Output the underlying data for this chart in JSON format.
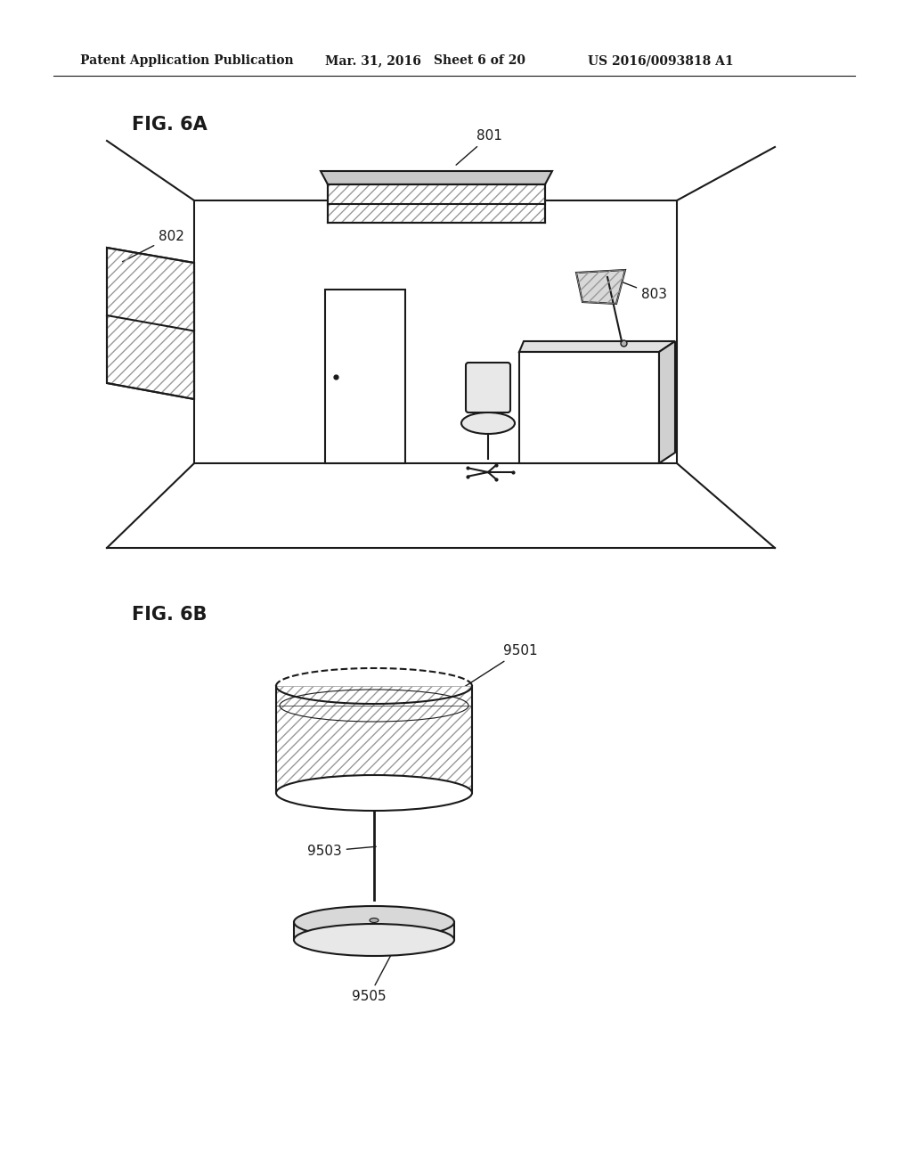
{
  "bg_color": "#ffffff",
  "header_text": "Patent Application Publication",
  "header_date": "Mar. 31, 2016",
  "header_sheet": "Sheet 6 of 20",
  "header_patent": "US 2016/0093818 A1",
  "fig6a_label": "FIG. 6A",
  "fig6b_label": "FIG. 6B",
  "label_801": "801",
  "label_802": "802",
  "label_803": "803",
  "label_9501": "9501",
  "label_9503": "9503",
  "label_9505": "9505",
  "line_color": "#1a1a1a",
  "hatch_color": "#888888"
}
